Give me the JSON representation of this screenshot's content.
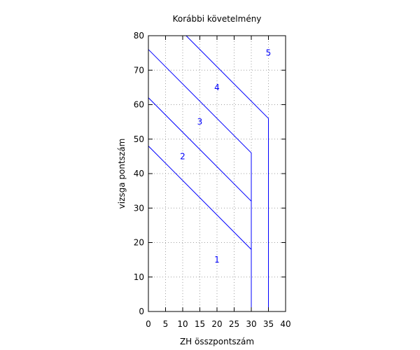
{
  "chart_data": {
    "type": "line",
    "title": "Korábbi követelmény",
    "xlabel": "ZH összpontszám",
    "ylabel": "vizsga pontszám",
    "xlim": [
      0,
      40
    ],
    "ylim": [
      0,
      80
    ],
    "xticks": [
      0,
      5,
      10,
      15,
      20,
      25,
      30,
      35,
      40
    ],
    "yticks": [
      0,
      10,
      20,
      30,
      40,
      50,
      60,
      70,
      80
    ],
    "grid": true,
    "line_color": "#0000ff",
    "series": [
      {
        "points": [
          [
            0,
            48
          ],
          [
            30,
            18
          ],
          [
            30,
            0
          ]
        ]
      },
      {
        "points": [
          [
            0,
            62
          ],
          [
            30,
            32
          ],
          [
            30,
            0
          ]
        ]
      },
      {
        "points": [
          [
            0,
            76
          ],
          [
            30,
            46
          ],
          [
            30,
            0
          ]
        ]
      },
      {
        "points": [
          [
            11,
            80
          ],
          [
            35,
            56
          ],
          [
            35,
            0
          ]
        ]
      }
    ],
    "annotations": [
      {
        "text": "1",
        "x": 20,
        "y": 15
      },
      {
        "text": "2",
        "x": 10,
        "y": 45
      },
      {
        "text": "3",
        "x": 15,
        "y": 55
      },
      {
        "text": "4",
        "x": 20,
        "y": 65
      },
      {
        "text": "5",
        "x": 35,
        "y": 75
      }
    ]
  }
}
